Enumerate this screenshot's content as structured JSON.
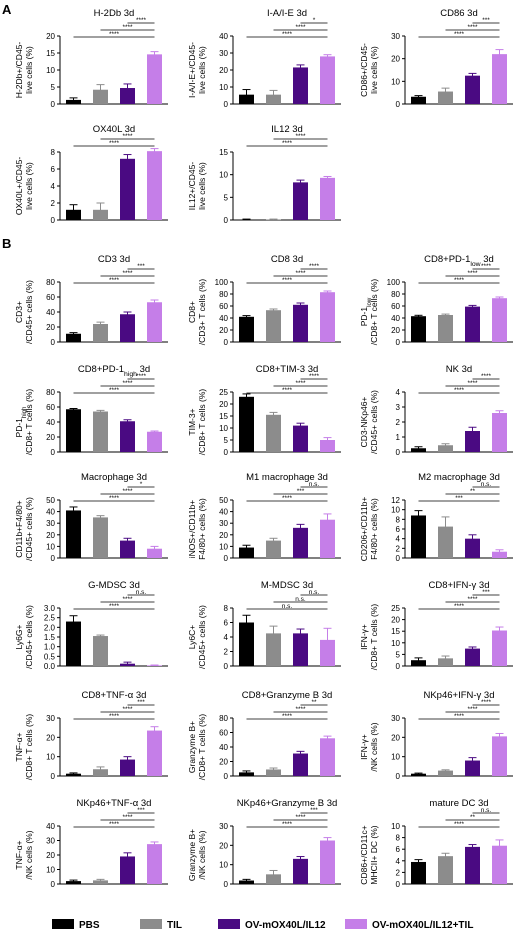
{
  "colors": {
    "PBS": "#000000",
    "TIL": "#8c8c8c",
    "OV": "#4a0a82",
    "OVT": "#c57ee8"
  },
  "section_labels": [
    "A",
    "B"
  ],
  "legend": [
    {
      "label": "PBS",
      "color": "#000000"
    },
    {
      "label": "TIL",
      "color": "#8c8c8c"
    },
    {
      "label": "OV-mOX40L/IL12",
      "color": "#4a0a82"
    },
    {
      "label": "OV-mOX40L/IL12+TIL",
      "color": "#c57ee8"
    }
  ],
  "chart_data": [
    {
      "type": "bar",
      "title": "H-2Db 3d",
      "ylabel": [
        "H-2Db+/CD45-",
        "live cells (%)"
      ],
      "yticks": [
        0,
        5,
        10,
        15,
        20
      ],
      "ylim": [
        0,
        20
      ],
      "values": [
        1.2,
        4.2,
        4.7,
        14.6
      ],
      "errors": [
        0.6,
        1.5,
        1.2,
        0.8
      ],
      "brackets": [
        {
          "from": 0,
          "to": 3,
          "label": "****"
        },
        {
          "from": 1,
          "to": 3,
          "label": "****"
        },
        {
          "from": 2,
          "to": 3,
          "label": "****"
        }
      ]
    },
    {
      "type": "bar",
      "title": "I-A/I-E 3d",
      "ylabel": [
        "I-A/I-E+/CD45-",
        "live cells (%)"
      ],
      "yticks": [
        0,
        10,
        20,
        30,
        40
      ],
      "ylim": [
        0,
        40
      ],
      "values": [
        5.5,
        5.5,
        21.5,
        28
      ],
      "errors": [
        3,
        2.5,
        1.5,
        1
      ],
      "brackets": [
        {
          "from": 0,
          "to": 3,
          "label": "****"
        },
        {
          "from": 1,
          "to": 3,
          "label": "****"
        },
        {
          "from": 2,
          "to": 3,
          "label": "*"
        }
      ]
    },
    {
      "type": "bar",
      "title": "CD86 3d",
      "ylabel": [
        "CD86+/CD45-",
        "live cells (%)"
      ],
      "yticks": [
        0,
        10,
        20,
        30
      ],
      "ylim": [
        0,
        30
      ],
      "values": [
        3.2,
        5.5,
        12.5,
        22
      ],
      "errors": [
        0.5,
        1.5,
        1,
        2
      ],
      "brackets": [
        {
          "from": 0,
          "to": 3,
          "label": "****"
        },
        {
          "from": 1,
          "to": 3,
          "label": "****"
        },
        {
          "from": 2,
          "to": 3,
          "label": "***"
        }
      ]
    },
    {
      "type": "bar",
      "title": "OX40L 3d",
      "ylabel": [
        "OX40L+/CD45-",
        "live cells (%)"
      ],
      "yticks": [
        0,
        2,
        4,
        6,
        8
      ],
      "ylim": [
        0,
        8
      ],
      "values": [
        1.2,
        1.2,
        7.2,
        8.1
      ],
      "errors": [
        0.6,
        0.8,
        0.5,
        0.3
      ],
      "brackets": [
        {
          "from": 0,
          "to": 3,
          "label": "****"
        },
        {
          "from": 1,
          "to": 3,
          "label": "****"
        }
      ]
    },
    {
      "type": "bar",
      "title": "IL12 3d",
      "ylabel": [
        "IL12+/CD45-",
        "live cells (%)"
      ],
      "yticks": [
        0,
        5,
        10,
        15
      ],
      "ylim": [
        0,
        15
      ],
      "values": [
        0.1,
        0.1,
        8.3,
        9.3
      ],
      "errors": [
        0.1,
        0.1,
        0.5,
        0.3
      ],
      "brackets": [
        {
          "from": 0,
          "to": 3,
          "label": "****"
        },
        {
          "from": 1,
          "to": 3,
          "label": "****"
        }
      ]
    },
    {
      "type": "bar",
      "title": "CD3 3d",
      "ylabel": [
        "CD3+",
        "/CD45+ cells (%)"
      ],
      "yticks": [
        0,
        20,
        40,
        60,
        80
      ],
      "ylim": [
        0,
        80
      ],
      "values": [
        11,
        24,
        37,
        53
      ],
      "errors": [
        1.5,
        2.5,
        3,
        3
      ],
      "brackets": [
        {
          "from": 0,
          "to": 3,
          "label": "****"
        },
        {
          "from": 1,
          "to": 3,
          "label": "****"
        },
        {
          "from": 2,
          "to": 3,
          "label": "***"
        }
      ]
    },
    {
      "type": "bar",
      "title": "CD8 3d",
      "ylabel": [
        "CD8+",
        "/CD3+ T cells (%)"
      ],
      "yticks": [
        0,
        20,
        40,
        60,
        80,
        100
      ],
      "ylim": [
        0,
        100
      ],
      "values": [
        42,
        53,
        62,
        83
      ],
      "errors": [
        2,
        2,
        3,
        2
      ],
      "brackets": [
        {
          "from": 0,
          "to": 3,
          "label": "****"
        },
        {
          "from": 1,
          "to": 3,
          "label": "****"
        },
        {
          "from": 2,
          "to": 3,
          "label": "****"
        }
      ]
    },
    {
      "type": "bar",
      "title": "CD8+PD-1low 3d",
      "title_parts": {
        "main": "CD8+PD-1",
        "sub": "low",
        "tail": " 3d"
      },
      "ylabel": [
        "PD-1low",
        "/CD8+ T cells (%)"
      ],
      "yticks": [
        0,
        20,
        40,
        60,
        80,
        100
      ],
      "ylim": [
        0,
        100
      ],
      "values": [
        43,
        45,
        59,
        73
      ],
      "errors": [
        1.5,
        1.5,
        2,
        2
      ],
      "brackets": [
        {
          "from": 0,
          "to": 3,
          "label": "****"
        },
        {
          "from": 1,
          "to": 3,
          "label": "****"
        },
        {
          "from": 2,
          "to": 3,
          "label": "****"
        }
      ]
    },
    {
      "type": "bar",
      "title": "CD8+PD-1high 3d",
      "title_parts": {
        "main": "CD8+PD-1",
        "sub": "high",
        "tail": " 3d"
      },
      "ylabel": [
        "PD-1high",
        "/CD8+ T cells (%)"
      ],
      "yticks": [
        0,
        20,
        40,
        60,
        80
      ],
      "ylim": [
        0,
        80
      ],
      "values": [
        57,
        54,
        41,
        27
      ],
      "errors": [
        1,
        1.5,
        2,
        1
      ],
      "brackets": [
        {
          "from": 0,
          "to": 3,
          "label": "****"
        },
        {
          "from": 1,
          "to": 3,
          "label": "****"
        },
        {
          "from": 2,
          "to": 3,
          "label": "****"
        }
      ]
    },
    {
      "type": "bar",
      "title": "CD8+TIM-3 3d",
      "ylabel": [
        "TIM-3+",
        "/CD8+ T cells (%)"
      ],
      "yticks": [
        0,
        5,
        10,
        15,
        20,
        25
      ],
      "ylim": [
        0,
        25
      ],
      "values": [
        23,
        15.5,
        11,
        5
      ],
      "errors": [
        1.2,
        1,
        1,
        1
      ],
      "brackets": [
        {
          "from": 0,
          "to": 3,
          "label": "****"
        },
        {
          "from": 1,
          "to": 3,
          "label": "****"
        },
        {
          "from": 2,
          "to": 3,
          "label": "****"
        }
      ]
    },
    {
      "type": "bar",
      "title": "NK 3d",
      "ylabel": [
        "CD3-NKp46+",
        "/CD45+ cells (%)"
      ],
      "yticks": [
        0,
        1,
        2,
        3,
        4
      ],
      "ylim": [
        0,
        4
      ],
      "values": [
        0.25,
        0.45,
        1.4,
        2.6
      ],
      "errors": [
        0.1,
        0.1,
        0.25,
        0.15
      ],
      "brackets": [
        {
          "from": 0,
          "to": 3,
          "label": "****"
        },
        {
          "from": 1,
          "to": 3,
          "label": "****"
        },
        {
          "from": 2,
          "to": 3,
          "label": "****"
        }
      ]
    },
    {
      "type": "bar",
      "title": "Macrophage 3d",
      "ylabel": [
        "CD11b+F4/80+",
        "/CD45+ cells (%)"
      ],
      "yticks": [
        0,
        10,
        20,
        30,
        40,
        50
      ],
      "ylim": [
        0,
        50
      ],
      "values": [
        41,
        35,
        15,
        8
      ],
      "errors": [
        3,
        1.5,
        2,
        2
      ],
      "brackets": [
        {
          "from": 0,
          "to": 3,
          "label": "****"
        },
        {
          "from": 1,
          "to": 3,
          "label": "****"
        },
        {
          "from": 2,
          "to": 3,
          "label": "*"
        }
      ]
    },
    {
      "type": "bar",
      "title": "M1 macrophage 3d",
      "ylabel": [
        "iNOS+/CD11b+",
        "F4/80+ cells (%)"
      ],
      "yticks": [
        0,
        10,
        20,
        30,
        40,
        50
      ],
      "ylim": [
        0,
        50
      ],
      "values": [
        9,
        15,
        26,
        33
      ],
      "errors": [
        2,
        2,
        3,
        5
      ],
      "brackets": [
        {
          "from": 0,
          "to": 3,
          "label": "****"
        },
        {
          "from": 1,
          "to": 3,
          "label": "***"
        },
        {
          "from": 2,
          "to": 3,
          "label": "n.s."
        }
      ]
    },
    {
      "type": "bar",
      "title": "M2 macrophage 3d",
      "ylabel": [
        "CD206+/CD11b+",
        "F4/80+ cells (%)"
      ],
      "yticks": [
        0,
        2,
        4,
        6,
        8,
        10,
        12
      ],
      "ylim": [
        0,
        12
      ],
      "values": [
        8.8,
        6.5,
        4,
        1.3
      ],
      "errors": [
        1,
        2,
        0.8,
        0.4
      ],
      "brackets": [
        {
          "from": 0,
          "to": 3,
          "label": "***"
        },
        {
          "from": 1,
          "to": 3,
          "label": "**"
        },
        {
          "from": 2,
          "to": 3,
          "label": "n.s."
        }
      ]
    },
    {
      "type": "bar",
      "title": "G-MDSC 3d",
      "ylabel": [
        "Ly6G+",
        "/CD45+ cells (%)"
      ],
      "yticks": [
        0.0,
        0.5,
        1.0,
        1.5,
        2.0,
        2.5,
        3.0
      ],
      "ytick_labels": [
        "0.0",
        "0.5",
        "1.0",
        "1.5",
        "2.0",
        "2.5",
        "3.0"
      ],
      "ylim": [
        0,
        3
      ],
      "values": [
        2.3,
        1.55,
        0.12,
        0.03
      ],
      "errors": [
        0.3,
        0.05,
        0.08,
        0.02
      ],
      "brackets": [
        {
          "from": 0,
          "to": 3,
          "label": "****"
        },
        {
          "from": 1,
          "to": 3,
          "label": "****"
        },
        {
          "from": 2,
          "to": 3,
          "label": "n.s."
        }
      ]
    },
    {
      "type": "bar",
      "title": "M-MDSC 3d",
      "ylabel": [
        "Ly6C+",
        "/CD45+ cells (%)"
      ],
      "yticks": [
        0,
        2,
        4,
        6,
        8
      ],
      "ylim": [
        0,
        8
      ],
      "values": [
        6,
        4.5,
        4.5,
        3.6
      ],
      "errors": [
        1,
        1,
        0.6,
        1.6
      ],
      "brackets": [
        {
          "from": 0,
          "to": 3,
          "label": "n.s."
        },
        {
          "from": 1,
          "to": 3,
          "label": "n.s."
        },
        {
          "from": 2,
          "to": 3,
          "label": "n.s."
        }
      ]
    },
    {
      "type": "bar",
      "title": "CD8+IFN-γ 3d",
      "ylabel": [
        "IFN-γ+",
        "/CD8+ T cells (%)"
      ],
      "yticks": [
        0,
        5,
        10,
        15,
        20,
        25
      ],
      "ylim": [
        0,
        25
      ],
      "values": [
        2.5,
        3.3,
        7.5,
        15.3
      ],
      "errors": [
        1,
        1,
        0.7,
        1.5
      ],
      "brackets": [
        {
          "from": 0,
          "to": 3,
          "label": "****"
        },
        {
          "from": 1,
          "to": 3,
          "label": "****"
        },
        {
          "from": 2,
          "to": 3,
          "label": "***"
        }
      ]
    },
    {
      "type": "bar",
      "title": "CD8+TNF-α 3d",
      "ylabel": [
        "TNF-α+",
        "/CD8+ T cells (%)"
      ],
      "yticks": [
        0,
        10,
        20,
        30
      ],
      "ylim": [
        0,
        30
      ],
      "values": [
        1.2,
        3.5,
        8.5,
        23.5
      ],
      "errors": [
        0.4,
        1.2,
        1.5,
        2
      ],
      "brackets": [
        {
          "from": 0,
          "to": 3,
          "label": "****"
        },
        {
          "from": 1,
          "to": 3,
          "label": "****"
        },
        {
          "from": 2,
          "to": 3,
          "label": "***"
        }
      ]
    },
    {
      "type": "bar",
      "title": "CD8+Granzyme B 3d",
      "ylabel": [
        "Granzyme B+",
        "/CD8+ T cells (%)"
      ],
      "yticks": [
        0,
        20,
        40,
        60,
        80
      ],
      "ylim": [
        0,
        80
      ],
      "values": [
        5,
        9,
        31,
        52
      ],
      "errors": [
        2,
        2,
        3,
        3
      ],
      "brackets": [
        {
          "from": 0,
          "to": 3,
          "label": "****"
        },
        {
          "from": 1,
          "to": 3,
          "label": "****"
        },
        {
          "from": 2,
          "to": 3,
          "label": "**"
        }
      ]
    },
    {
      "type": "bar",
      "title": "NKp46+IFN-γ 3d",
      "ylabel": [
        "IFN-γ+",
        "/NK cells (%)"
      ],
      "yticks": [
        0,
        10,
        20,
        30
      ],
      "ylim": [
        0,
        30
      ],
      "values": [
        1.2,
        2.8,
        8,
        20.5
      ],
      "errors": [
        0.3,
        0.4,
        1.5,
        1.5
      ],
      "brackets": [
        {
          "from": 0,
          "to": 3,
          "label": "****"
        },
        {
          "from": 1,
          "to": 3,
          "label": "****"
        },
        {
          "from": 2,
          "to": 3,
          "label": "****"
        }
      ]
    },
    {
      "type": "bar",
      "title": "NKp46+TNF-α 3d",
      "ylabel": [
        "TNF-α+",
        "/NK cells (%)"
      ],
      "yticks": [
        0,
        10,
        20,
        30,
        40
      ],
      "ylim": [
        0,
        40
      ],
      "values": [
        2,
        2.5,
        19,
        27.5
      ],
      "errors": [
        0.7,
        0.7,
        2.5,
        1.5
      ],
      "brackets": [
        {
          "from": 0,
          "to": 3,
          "label": "****"
        },
        {
          "from": 1,
          "to": 3,
          "label": "****"
        },
        {
          "from": 2,
          "to": 3,
          "label": "***"
        }
      ]
    },
    {
      "type": "bar",
      "title": "NKp46+Granzyme B 3d",
      "ylabel": [
        "Granzyme B+",
        "/NK cells (%)"
      ],
      "yticks": [
        0,
        10,
        20,
        30
      ],
      "ylim": [
        0,
        30
      ],
      "values": [
        1.8,
        5,
        13,
        22.5
      ],
      "errors": [
        0.6,
        2,
        1.2,
        1.5
      ],
      "brackets": [
        {
          "from": 0,
          "to": 3,
          "label": "****"
        },
        {
          "from": 1,
          "to": 3,
          "label": "****"
        },
        {
          "from": 2,
          "to": 3,
          "label": "***"
        }
      ]
    },
    {
      "type": "bar",
      "title": "mature DC 3d",
      "ylabel": [
        "CD86+/CD11c+",
        "MHCII+ DC (%)"
      ],
      "yticks": [
        0,
        2,
        4,
        6,
        8,
        10
      ],
      "ylim": [
        0,
        10
      ],
      "values": [
        3.8,
        4.8,
        6.4,
        6.6
      ],
      "errors": [
        0.4,
        0.5,
        0.4,
        1
      ],
      "brackets": [
        {
          "from": 0,
          "to": 3,
          "label": "****"
        },
        {
          "from": 1,
          "to": 3,
          "label": "**"
        },
        {
          "from": 2,
          "to": 3,
          "label": "n.s."
        }
      ]
    }
  ]
}
